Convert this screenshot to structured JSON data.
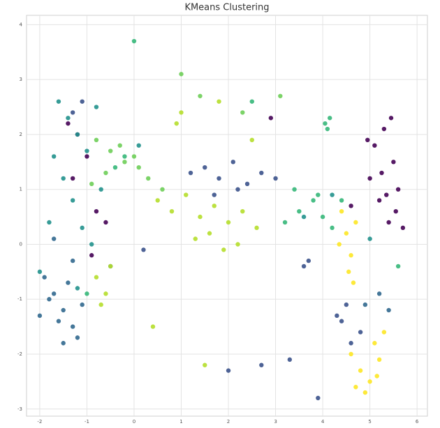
{
  "chart_data": {
    "type": "scatter",
    "title": "KMeans Clustering",
    "xlim": [
      -2.28,
      6.22
    ],
    "ylim": [
      -3.13,
      4.17
    ],
    "xticks": [
      -2,
      -1,
      0,
      1,
      2,
      3,
      4,
      5,
      6
    ],
    "yticks": [
      -3,
      -2,
      -1,
      0,
      1,
      2,
      3,
      4
    ],
    "grid": true,
    "series": [
      {
        "color": "#440154",
        "x": [
          5.1,
          5.3,
          5.5,
          5.6,
          5.2,
          5.4,
          5.0,
          5.45,
          5.25,
          5.55,
          4.95,
          5.35,
          -1.4,
          -1.2,
          -1.0,
          -0.8,
          -1.3,
          -0.9,
          -0.6,
          2.9,
          4.6,
          5.7
        ],
        "y": [
          1.8,
          2.1,
          1.5,
          1.0,
          0.8,
          0.4,
          1.2,
          2.3,
          1.3,
          0.6,
          1.9,
          0.9,
          2.2,
          2.0,
          1.6,
          0.6,
          1.2,
          -0.2,
          0.4,
          2.3,
          0.7,
          0.3
        ]
      },
      {
        "color": "#3b528b",
        "x": [
          1.2,
          1.5,
          1.8,
          2.1,
          2.4,
          2.7,
          3.0,
          1.7,
          2.2,
          4.4,
          4.6,
          4.8,
          4.5,
          4.3,
          3.6,
          3.7,
          -1.3,
          -1.1,
          2.0,
          2.7,
          3.3,
          3.9,
          0.2
        ],
        "y": [
          1.3,
          1.4,
          1.2,
          1.5,
          1.1,
          1.3,
          1.2,
          0.9,
          1.0,
          -1.4,
          -1.8,
          -1.6,
          -1.1,
          -1.3,
          -0.4,
          -0.3,
          2.4,
          2.6,
          -2.3,
          -2.2,
          -2.1,
          -2.8,
          -0.1
        ]
      },
      {
        "color": "#31688e",
        "x": [
          -1.9,
          -1.7,
          -1.5,
          -1.3,
          -1.2,
          -1.6,
          -1.4,
          -1.8,
          -1.1,
          -2.0,
          -1.5,
          -1.3,
          -1.7,
          -0.5,
          4.9,
          5.2,
          5.4
        ],
        "y": [
          -0.6,
          -0.9,
          -1.2,
          -1.5,
          -1.7,
          -1.4,
          -0.7,
          -1.0,
          -1.1,
          -1.3,
          -1.8,
          -0.3,
          0.1,
          -0.4,
          -1.1,
          -0.9,
          -1.2
        ]
      },
      {
        "color": "#21918c",
        "x": [
          -1.6,
          -1.4,
          -1.2,
          -1.0,
          -0.8,
          -1.5,
          -1.3,
          -1.1,
          -0.9,
          -1.7,
          -2.0,
          -1.8,
          -0.7,
          -1.2,
          3.6,
          4.2,
          5.0,
          0.1
        ],
        "y": [
          2.6,
          2.3,
          2.0,
          1.7,
          2.5,
          1.2,
          0.8,
          0.3,
          0.0,
          1.6,
          -0.5,
          0.4,
          1.0,
          -0.8,
          0.5,
          0.9,
          0.1,
          1.8
        ]
      },
      {
        "color": "#35b779",
        "x": [
          3.2,
          3.5,
          3.8,
          4.0,
          4.2,
          3.4,
          3.9,
          4.05,
          4.1,
          4.15,
          -0.4,
          -0.2,
          2.5,
          4.4,
          5.6,
          -1.0,
          0.0
        ],
        "y": [
          0.4,
          0.6,
          0.8,
          0.5,
          0.3,
          1.0,
          0.9,
          2.2,
          2.1,
          2.3,
          1.4,
          1.6,
          2.6,
          0.8,
          -0.4,
          -0.9,
          3.7
        ]
      },
      {
        "color": "#6ece58",
        "x": [
          -0.8,
          -0.5,
          -0.2,
          0.1,
          -0.6,
          -0.3,
          0.0,
          -0.9,
          0.3,
          0.6,
          1.4,
          2.3,
          3.1,
          1.0
        ],
        "y": [
          1.9,
          1.7,
          1.5,
          1.4,
          1.3,
          1.8,
          1.6,
          1.1,
          1.2,
          1.0,
          2.7,
          2.4,
          2.7,
          3.1
        ]
      },
      {
        "color": "#b5de2b",
        "x": [
          0.5,
          0.8,
          1.1,
          1.4,
          1.7,
          2.0,
          2.3,
          2.6,
          1.3,
          1.6,
          1.9,
          2.2,
          0.9,
          1.8,
          -0.8,
          -0.6,
          -0.7,
          -0.5,
          1.0,
          2.5,
          0.4,
          1.5
        ],
        "y": [
          0.8,
          0.6,
          0.9,
          0.5,
          0.7,
          0.4,
          0.6,
          0.3,
          0.1,
          0.2,
          -0.1,
          0.0,
          2.2,
          2.6,
          -0.6,
          -0.9,
          -1.1,
          -0.4,
          2.4,
          1.9,
          -1.5,
          -2.2
        ]
      },
      {
        "color": "#fde725",
        "x": [
          4.6,
          4.8,
          5.0,
          5.2,
          5.3,
          4.9,
          5.1,
          4.7,
          5.15,
          4.4,
          4.5,
          4.6,
          4.55,
          4.7,
          4.35,
          4.65
        ],
        "y": [
          -2.0,
          -2.3,
          -2.5,
          -2.1,
          -1.6,
          -2.7,
          -1.8,
          -2.6,
          -2.4,
          0.6,
          0.2,
          -0.2,
          -0.5,
          0.4,
          0.0,
          -0.7
        ]
      }
    ]
  }
}
